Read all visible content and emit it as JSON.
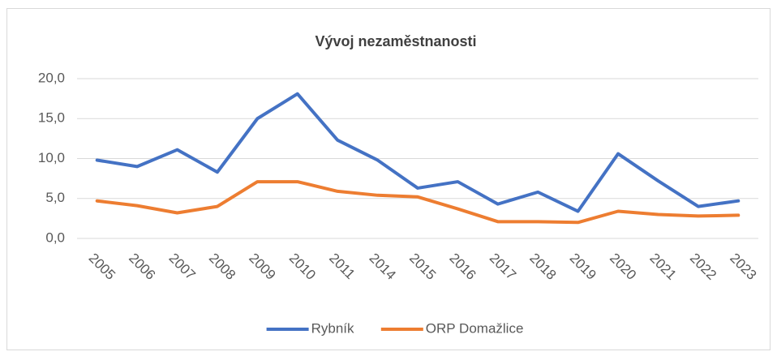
{
  "chart_data": {
    "type": "line",
    "title": "Vývoj nezaměstnanosti",
    "categories": [
      "2005",
      "2006",
      "2007",
      "2008",
      "2009",
      "2010",
      "2011",
      "2014",
      "2015",
      "2016",
      "2017",
      "2018",
      "2019",
      "2020",
      "2021",
      "2022",
      "2023"
    ],
    "series": [
      {
        "name": "Rybník",
        "color": "#4472c4",
        "values": [
          9.8,
          9.0,
          11.1,
          8.3,
          15.0,
          18.1,
          12.3,
          9.8,
          6.3,
          7.1,
          4.3,
          5.8,
          3.4,
          10.6,
          7.2,
          4.0,
          4.7
        ]
      },
      {
        "name": "ORP Domažlice",
        "color": "#ed7d31",
        "values": [
          4.7,
          4.1,
          3.2,
          4.0,
          7.1,
          7.1,
          5.9,
          5.4,
          5.2,
          3.7,
          2.1,
          2.1,
          2.0,
          3.4,
          3.0,
          2.8,
          2.9
        ]
      }
    ],
    "ylim": [
      0,
      20
    ],
    "yticks": [
      {
        "value": 0,
        "label": "0,0"
      },
      {
        "value": 5,
        "label": "5,0"
      },
      {
        "value": 10,
        "label": "10,0"
      },
      {
        "value": 15,
        "label": "15,0"
      },
      {
        "value": 20,
        "label": "20,0"
      }
    ],
    "grid": true,
    "legend": "bottom"
  }
}
